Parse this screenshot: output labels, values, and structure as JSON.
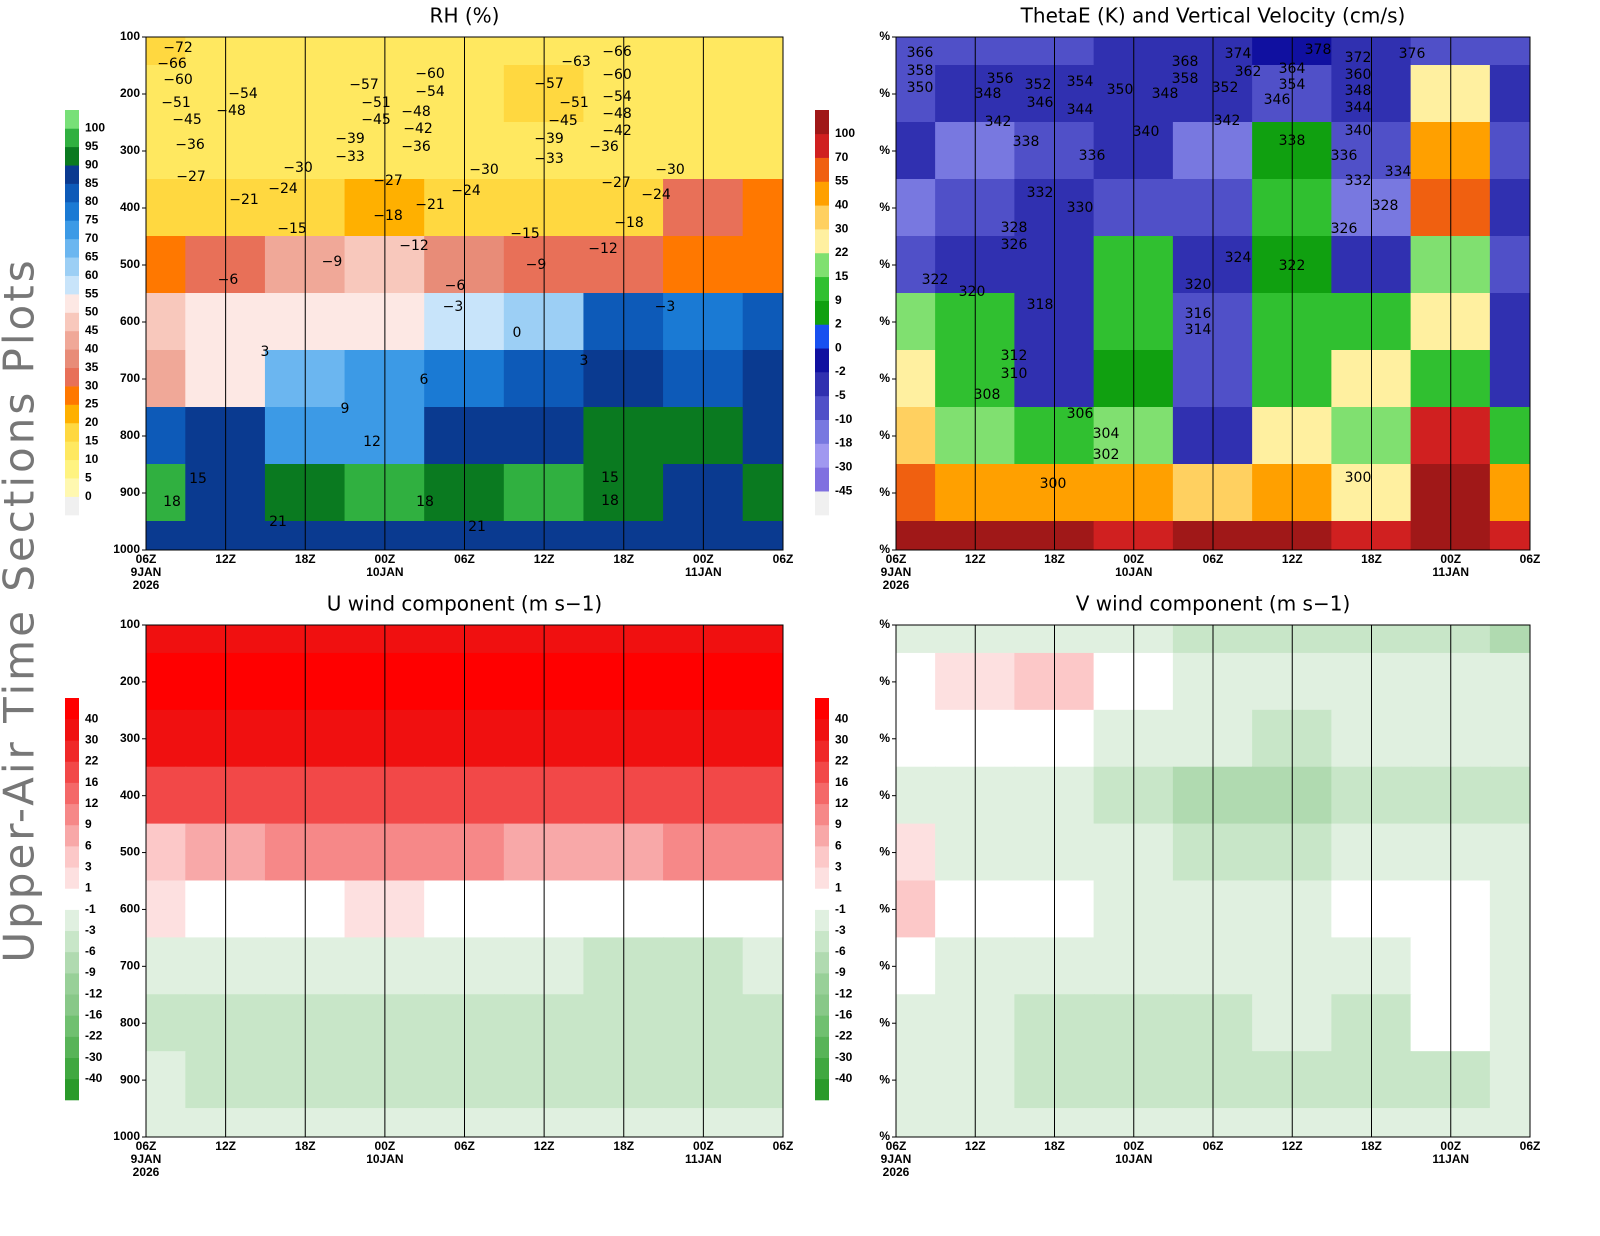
{
  "page_title": "Upper-Air Time Sections Plots",
  "chart_data": [
    {
      "type": "contour",
      "title": "RH (%)",
      "categories": [
        "06Z",
        "12Z",
        "18Z",
        "00Z",
        "06Z",
        "12Z",
        "18Z",
        "00Z",
        "06Z"
      ],
      "date_labels": [
        "9JAN",
        "10JAN",
        "11JAN"
      ],
      "year": "2026",
      "ylim": [
        1000,
        100
      ],
      "yticks": [
        100,
        200,
        300,
        400,
        500,
        600,
        700,
        800,
        900,
        1000
      ],
      "y": [
        100,
        200,
        300,
        400,
        500,
        600,
        700,
        800,
        900,
        1000
      ],
      "levels": [
        0,
        5,
        10,
        15,
        20,
        25,
        30,
        35,
        40,
        45,
        50,
        55,
        60,
        65,
        70,
        75,
        80,
        85,
        90,
        95,
        100
      ],
      "colors": [
        "#f0f0f0",
        "#fff8b0",
        "#fff380",
        "#ffe860",
        "#ffd840",
        "#ffb000",
        "#ff7800",
        "#e87058",
        "#e88c78",
        "#f0a898",
        "#f8c8bc",
        "#fde8e4",
        "#c8e4fa",
        "#9ccff5",
        "#6bb6f0",
        "#3c9ae6",
        "#1a7ad4",
        "#0d5ab8",
        "#0a3a90",
        "#0a7a20",
        "#30b040",
        "#78e078"
      ],
      "z": [
        [
          15,
          10,
          10,
          10,
          10,
          10,
          10,
          10,
          10
        ],
        [
          10,
          10,
          10,
          10,
          10,
          15,
          10,
          10,
          10
        ],
        [
          10,
          10,
          10,
          10,
          10,
          10,
          10,
          10,
          10
        ],
        [
          15,
          15,
          15,
          20,
          15,
          15,
          15,
          30,
          25
        ],
        [
          25,
          30,
          40,
          45,
          35,
          30,
          30,
          25,
          25
        ],
        [
          45,
          50,
          50,
          50,
          55,
          60,
          80,
          75,
          80
        ],
        [
          40,
          50,
          65,
          70,
          75,
          80,
          85,
          80,
          85
        ],
        [
          80,
          85,
          70,
          70,
          85,
          85,
          90,
          90,
          85
        ],
        [
          95,
          85,
          90,
          95,
          90,
          95,
          90,
          85,
          90
        ],
        [
          85,
          85,
          85,
          85,
          85,
          85,
          85,
          85,
          85
        ]
      ],
      "contour_labels": [
        "−72",
        "−66",
        "−60",
        "−51",
        "−54",
        "−48",
        "−45",
        "−36",
        "−27",
        "−21",
        "−24",
        "−30",
        "−15",
        "−9",
        "−6",
        "3",
        "6",
        "9",
        "12",
        "15",
        "18",
        "21",
        "−57",
        "−51",
        "−45",
        "−39",
        "−33",
        "−60",
        "−54",
        "−48",
        "−42",
        "−36",
        "−27",
        "−18",
        "−21",
        "−12",
        "−6",
        "−3",
        "−30",
        "−24",
        "0",
        "−15",
        "−9",
        "−57",
        "−51",
        "−45",
        "−39",
        "−33",
        "−63",
        "−66",
        "−60",
        "−54",
        "−48",
        "−42",
        "−36",
        "−27",
        "−24",
        "−30",
        "−18",
        "−12",
        "−3",
        "3",
        "15",
        "18",
        "18",
        "21"
      ]
    },
    {
      "type": "contour",
      "title": "ThetaE (K) and Vertical Velocity (cm/s)",
      "categories": [
        "06Z",
        "12Z",
        "18Z",
        "00Z",
        "06Z",
        "12Z",
        "18Z",
        "00Z",
        "06Z"
      ],
      "date_labels": [
        "9JAN",
        "10JAN",
        "11JAN"
      ],
      "year": "2026",
      "ylim": [
        1000,
        100
      ],
      "yticks": [
        {
          "value": 100,
          "label": "%"
        },
        {
          "value": 200,
          "label": "%"
        },
        {
          "value": 300,
          "label": "%"
        },
        {
          "value": 400,
          "label": "%"
        },
        {
          "value": 500,
          "label": "%"
        },
        {
          "value": 600,
          "label": "%"
        },
        {
          "value": 700,
          "label": "%"
        },
        {
          "value": 800,
          "label": "%"
        },
        {
          "value": 900,
          "label": "%"
        },
        {
          "value": 1000,
          "label": "%"
        }
      ],
      "y": [
        100,
        200,
        300,
        400,
        500,
        600,
        700,
        800,
        900,
        1000
      ],
      "levels": [
        -45,
        -30,
        -18,
        -10,
        -5,
        -2,
        0,
        2,
        9,
        15,
        22,
        30,
        40,
        55,
        70,
        100
      ],
      "colors": [
        "#f0f0f0",
        "#8070e0",
        "#a098f0",
        "#7878e0",
        "#5050c8",
        "#3030b0",
        "#1010a0",
        "#1850f0",
        "#10a010",
        "#30c030",
        "#80e070",
        "#fff0a0",
        "#ffd060",
        "#ffa000",
        "#f06010",
        "#d02020",
        "#a01818"
      ],
      "z": [
        [
          -10,
          -10,
          -10,
          -5,
          -5,
          -2,
          -5,
          -10,
          -10
        ],
        [
          -10,
          -5,
          -5,
          -5,
          -5,
          -10,
          -5,
          22,
          -5
        ],
        [
          -5,
          -18,
          -10,
          -5,
          -18,
          2,
          -10,
          40,
          -10
        ],
        [
          -18,
          -10,
          -5,
          -10,
          -10,
          9,
          -18,
          55,
          -5
        ],
        [
          -10,
          -5,
          -5,
          9,
          -5,
          2,
          -5,
          15,
          -10
        ],
        [
          15,
          9,
          -5,
          9,
          -10,
          9,
          9,
          22,
          -5
        ],
        [
          22,
          9,
          -5,
          2,
          -10,
          9,
          22,
          9,
          -5
        ],
        [
          30,
          15,
          9,
          15,
          -5,
          22,
          15,
          70,
          9
        ],
        [
          55,
          40,
          40,
          40,
          30,
          40,
          22,
          100,
          40
        ],
        [
          100,
          100,
          100,
          70,
          100,
          100,
          70,
          100,
          70
        ]
      ],
      "contour_labels": [
        "366",
        "358",
        "350",
        "356",
        "348",
        "352",
        "346",
        "354",
        "344",
        "350",
        "348",
        "368",
        "358",
        "374",
        "362",
        "352",
        "364",
        "354",
        "346",
        "378",
        "372",
        "360",
        "348",
        "376",
        "344",
        "342",
        "338",
        "336",
        "340",
        "342",
        "338",
        "340",
        "336",
        "334",
        "332",
        "328",
        "332",
        "330",
        "328",
        "326",
        "326",
        "322",
        "320",
        "318",
        "324",
        "322",
        "320",
        "316",
        "314",
        "312",
        "310",
        "308",
        "306",
        "304",
        "302",
        "300",
        "300"
      ]
    },
    {
      "type": "contour",
      "title": "U wind component (m s−1)",
      "categories": [
        "06Z",
        "12Z",
        "18Z",
        "00Z",
        "06Z",
        "12Z",
        "18Z",
        "00Z",
        "06Z"
      ],
      "date_labels": [
        "9JAN",
        "10JAN",
        "11JAN"
      ],
      "year": "2026",
      "ylim": [
        1000,
        100
      ],
      "yticks": [
        100,
        200,
        300,
        400,
        500,
        600,
        700,
        800,
        900,
        1000
      ],
      "y": [
        100,
        200,
        300,
        400,
        500,
        600,
        700,
        800,
        900,
        1000
      ],
      "levels": [
        -40,
        -30,
        -22,
        -16,
        -12,
        -9,
        -6,
        -3,
        -1,
        1,
        3,
        6,
        9,
        12,
        16,
        22,
        30,
        40
      ],
      "colors": [
        "#2a9a2a",
        "#40a840",
        "#58b458",
        "#70c070",
        "#88c888",
        "#98d098",
        "#b0dab0",
        "#c8e6c8",
        "#e0f0e0",
        "#ffffff",
        "#fde0e0",
        "#fcc8c8",
        "#f8a8a8",
        "#f68888",
        "#f46868",
        "#f24848",
        "#f02828",
        "#f01010",
        "#ff0000"
      ],
      "z": [
        [
          30,
          30,
          30,
          30,
          30,
          30,
          30,
          30,
          30
        ],
        [
          40,
          40,
          40,
          40,
          40,
          40,
          40,
          40,
          40
        ],
        [
          30,
          30,
          30,
          30,
          30,
          30,
          30,
          30,
          30
        ],
        [
          16,
          16,
          16,
          16,
          16,
          16,
          16,
          16,
          16
        ],
        [
          3,
          6,
          9,
          9,
          9,
          6,
          6,
          9,
          9
        ],
        [
          1,
          -1,
          -1,
          1,
          -1,
          -1,
          -1,
          -1,
          -1
        ],
        [
          -3,
          -3,
          -3,
          -3,
          -3,
          -3,
          -6,
          -6,
          -3
        ],
        [
          -6,
          -6,
          -6,
          -6,
          -6,
          -6,
          -6,
          -6,
          -6
        ],
        [
          -3,
          -6,
          -6,
          -6,
          -6,
          -6,
          -6,
          -6,
          -6
        ],
        [
          -3,
          -3,
          -3,
          -3,
          -3,
          -3,
          -3,
          -3,
          -3
        ]
      ],
      "contour_labels": []
    },
    {
      "type": "contour",
      "title": "V wind component (m s−1)",
      "categories": [
        "06Z",
        "12Z",
        "18Z",
        "00Z",
        "06Z",
        "12Z",
        "18Z",
        "00Z",
        "06Z"
      ],
      "date_labels": [
        "9JAN",
        "10JAN",
        "11JAN"
      ],
      "year": "2026",
      "ylim": [
        1000,
        100
      ],
      "yticks": [
        {
          "value": 100,
          "label": "%"
        },
        {
          "value": 200,
          "label": "%"
        },
        {
          "value": 300,
          "label": "%"
        },
        {
          "value": 400,
          "label": "%"
        },
        {
          "value": 500,
          "label": "%"
        },
        {
          "value": 600,
          "label": "%"
        },
        {
          "value": 700,
          "label": "%"
        },
        {
          "value": 800,
          "label": "%"
        },
        {
          "value": 900,
          "label": "%"
        },
        {
          "value": 1000,
          "label": "%"
        }
      ],
      "y": [
        100,
        200,
        300,
        400,
        500,
        600,
        700,
        800,
        900,
        1000
      ],
      "levels": [
        -40,
        -30,
        -22,
        -16,
        -12,
        -9,
        -6,
        -3,
        -1,
        1,
        3,
        6,
        9,
        12,
        16,
        22,
        30,
        40
      ],
      "colors": [
        "#2a9a2a",
        "#40a840",
        "#58b458",
        "#70c070",
        "#88c888",
        "#98d098",
        "#b0dab0",
        "#c8e6c8",
        "#e0f0e0",
        "#ffffff",
        "#fde0e0",
        "#fcc8c8",
        "#f8a8a8",
        "#f68888",
        "#f46868",
        "#f24848",
        "#f02828",
        "#f01010",
        "#ff0000"
      ],
      "z": [
        [
          -3,
          -3,
          -3,
          -3,
          -6,
          -6,
          -6,
          -6,
          -9
        ],
        [
          -1,
          1,
          3,
          -1,
          -3,
          -3,
          -3,
          -3,
          -3
        ],
        [
          -1,
          -1,
          -1,
          -3,
          -3,
          -6,
          -3,
          -3,
          -3
        ],
        [
          -3,
          -3,
          -3,
          -6,
          -9,
          -9,
          -6,
          -6,
          -6
        ],
        [
          1,
          -3,
          -3,
          -3,
          -6,
          -6,
          -3,
          -3,
          -3
        ],
        [
          3,
          -1,
          -1,
          -3,
          -3,
          -3,
          -1,
          -1,
          -3
        ],
        [
          -1,
          -3,
          -3,
          -3,
          -3,
          -3,
          -3,
          -1,
          -3
        ],
        [
          -3,
          -3,
          -6,
          -6,
          -6,
          -3,
          -6,
          -1,
          -3
        ],
        [
          -3,
          -3,
          -6,
          -6,
          -6,
          -6,
          -6,
          -6,
          -3
        ],
        [
          -3,
          -3,
          -3,
          -3,
          -3,
          -3,
          -3,
          -3,
          -3
        ]
      ],
      "contour_labels": []
    }
  ]
}
